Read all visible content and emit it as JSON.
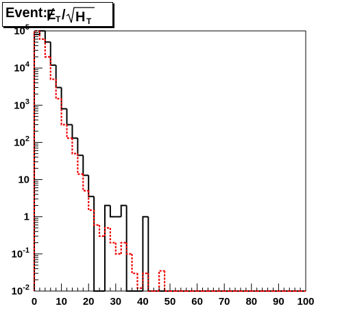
{
  "chart_data": {
    "type": "histogram",
    "title": "Event: ",
    "title_math": {
      "met": "E",
      "met_sub": "T",
      "sep": "/",
      "ht": "H",
      "ht_sub": "T"
    },
    "xlabel": "",
    "ylabel": "",
    "xlim": [
      0,
      100
    ],
    "ylim": [
      0.01,
      100000
    ],
    "yscale": "log",
    "grid": false,
    "legend": "none",
    "x_ticks": [
      "0",
      "10",
      "20",
      "30",
      "40",
      "50",
      "60",
      "70",
      "80",
      "90",
      "100"
    ],
    "y_ticks": [
      {
        "base": "10",
        "exp": "-2"
      },
      {
        "base": "10",
        "exp": "-1"
      },
      {
        "base": "1",
        "exp": ""
      },
      {
        "base": "10",
        "exp": ""
      },
      {
        "base": "10",
        "exp": "2"
      },
      {
        "base": "10",
        "exp": "3"
      },
      {
        "base": "10",
        "exp": "4"
      },
      {
        "base": "10",
        "exp": "5"
      }
    ],
    "bin_edges": [
      0,
      2,
      4,
      6,
      8,
      10,
      12,
      14,
      16,
      18,
      20,
      22,
      24,
      26,
      28,
      30,
      32,
      34,
      36,
      38,
      40,
      42,
      44,
      46,
      48,
      50,
      52,
      54,
      56,
      58,
      60,
      62,
      64,
      66,
      68,
      70,
      72,
      74,
      76,
      78,
      80,
      82,
      84,
      86,
      88,
      90,
      92,
      94,
      96,
      98,
      100
    ],
    "series": [
      {
        "color": "#000000",
        "style": "solid",
        "values": [
          80000,
          100000,
          50000,
          12000,
          3000,
          800,
          300,
          130,
          45,
          13,
          3.5,
          0.0,
          0.0,
          2,
          1,
          1,
          2,
          0.0,
          0.0,
          0.0,
          1,
          0.0,
          0.0,
          0.0,
          0.0,
          0.0,
          0.0,
          0.0,
          0.0,
          0.0,
          0.0,
          0.0,
          0.0,
          0.0,
          0.0,
          0.0,
          0.0,
          0.0,
          0.0,
          0.0,
          0.0,
          0.0,
          0.0,
          0.0,
          0.0,
          0.0,
          0.0,
          0.0,
          0.0,
          0.0
        ]
      },
      {
        "color": "#ee0000",
        "style": "dotted",
        "values": [
          150000,
          60000,
          20000,
          5000,
          1500,
          300,
          130,
          50,
          14,
          5,
          1.5,
          0.6,
          0.3,
          0.5,
          0.2,
          0.1,
          0.2,
          0.1,
          0.03,
          0.012,
          0.03,
          0.01,
          0.01,
          0.035,
          0.01,
          0.01,
          0.01,
          0.01,
          0.01,
          0.01,
          0.01,
          0.01,
          0.01,
          0.01,
          0.01,
          0.01,
          0.01,
          0.01,
          0.01,
          0.01,
          0.01,
          0.01,
          0.01,
          0.01,
          0.01,
          0.01,
          0.01,
          0.01,
          0.01,
          0.01
        ]
      }
    ]
  }
}
